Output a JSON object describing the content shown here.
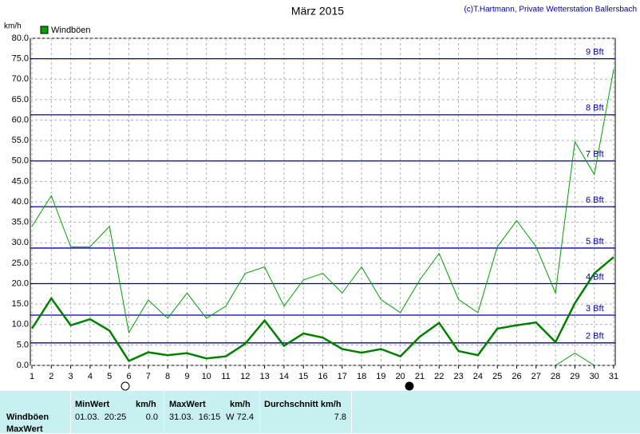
{
  "title": "März 2015",
  "copyright": "(c)T.Hartmann, Private Wetterstation Ballersbach",
  "chart_data": {
    "type": "line",
    "y_label": "km/h",
    "legend": "top-left",
    "grid": true,
    "categories": [
      "1",
      "2",
      "3",
      "4",
      "5",
      "6",
      "7",
      "8",
      "9",
      "10",
      "11",
      "12",
      "13",
      "14",
      "15",
      "16",
      "17",
      "18",
      "19",
      "20",
      "21",
      "22",
      "23",
      "24",
      "25",
      "26",
      "27",
      "28",
      "29",
      "30",
      "31"
    ],
    "series": [
      {
        "name": "Windböen",
        "color": "#00a000",
        "width": 1,
        "values": [
          34,
          41.5,
          29,
          29,
          34,
          8,
          16,
          11.5,
          17.7,
          11.5,
          14.5,
          22.5,
          24.1,
          14.5,
          20.9,
          22.5,
          17.7,
          24.1,
          16.1,
          12.9,
          20.9,
          27.4,
          16.1,
          12.9,
          29,
          35.4,
          29,
          17.7,
          54.7,
          46.7,
          72.4
        ]
      },
      {
        "color": "#008000",
        "width": 2.5,
        "values": [
          9,
          16.4,
          9.8,
          11.3,
          8.5,
          1.1,
          3.2,
          2.5,
          3,
          1.7,
          2.2,
          5.3,
          11,
          4.8,
          7.8,
          6.8,
          4,
          3.1,
          4,
          2.2,
          7,
          10.4,
          3.5,
          2.5,
          9,
          9.8,
          10.5,
          5.7,
          15.2,
          22.5,
          26.5
        ]
      },
      {
        "color": "#00a000",
        "width": 1,
        "values": [
          null,
          null,
          null,
          null,
          null,
          null,
          null,
          null,
          null,
          null,
          null,
          null,
          null,
          null,
          null,
          null,
          null,
          null,
          null,
          null,
          null,
          null,
          null,
          null,
          null,
          null,
          null,
          0,
          3,
          0,
          null
        ]
      }
    ],
    "ylim": [
      0,
      80
    ],
    "yticks": [
      {
        "value": 0,
        "label": "0.0"
      },
      {
        "value": 5,
        "label": "5.0"
      },
      {
        "value": 10,
        "label": "10.0"
      },
      {
        "value": 15,
        "label": "15.0"
      },
      {
        "value": 20,
        "label": "20.0"
      },
      {
        "value": 25,
        "label": "25.0"
      },
      {
        "value": 30,
        "label": "30.0"
      },
      {
        "value": 35,
        "label": "35.0"
      },
      {
        "value": 40,
        "label": "40.0"
      },
      {
        "value": 45,
        "label": "45.0"
      },
      {
        "value": 50,
        "label": "50.0"
      },
      {
        "value": 55,
        "label": "55.0"
      },
      {
        "value": 60,
        "label": "60.0"
      },
      {
        "value": 65,
        "label": "65.0"
      },
      {
        "value": 70,
        "label": "70.0"
      },
      {
        "value": 75,
        "label": "75.0"
      },
      {
        "value": 80,
        "label": "80.0"
      }
    ],
    "reference_lines": [
      {
        "value": 5.5,
        "label": "2 Bft"
      },
      {
        "value": 12.3,
        "label": "3 Bft"
      },
      {
        "value": 20,
        "label": "4 Bft"
      },
      {
        "value": 28.7,
        "label": "5 Bft"
      },
      {
        "value": 38.8,
        "label": "6 Bft"
      },
      {
        "value": 50,
        "label": "7 Bft"
      },
      {
        "value": 61.3,
        "label": "8 Bft"
      },
      {
        "value": 75,
        "label": "9 Bft"
      }
    ]
  },
  "table": {
    "header": [
      "MinWert",
      "km/h",
      "MaxWert",
      "km/h",
      "Durchschnitt km/h"
    ],
    "rows": [
      {
        "label": "Windböen",
        "cells": [
          "01.03.  20:25",
          "0.0",
          "31.03.  16:15",
          "W 72.4",
          "7.8"
        ]
      },
      {
        "label": "MaxWert"
      }
    ]
  }
}
